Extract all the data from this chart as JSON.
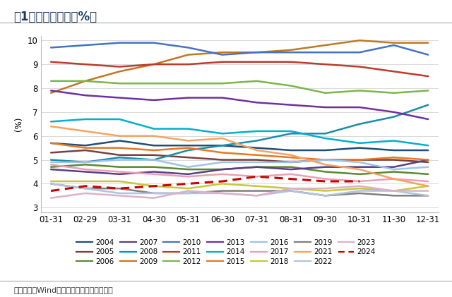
{
  "title": "图1：美国失业率（%）",
  "ylabel": "(%)",
  "source": "数据来源：Wind，广发证券发展研究中心。",
  "x_labels": [
    "01-31",
    "02-29",
    "03-31",
    "04-30",
    "05-31",
    "06-30",
    "07-31",
    "08-31",
    "09-30",
    "10-31",
    "11-30",
    "12-31"
  ],
  "ylim": [
    2.8,
    10.2
  ],
  "yticks": [
    3,
    4,
    5,
    6,
    7,
    8,
    9,
    10
  ],
  "series": {
    "2004": {
      "color": "#1F4E79",
      "values": [
        5.7,
        5.6,
        5.8,
        5.6,
        5.6,
        5.6,
        5.5,
        5.4,
        5.4,
        5.5,
        5.4,
        5.4
      ],
      "lw": 1.8,
      "ls": "-"
    },
    "2005": {
      "color": "#7B3F3F",
      "values": [
        5.3,
        5.4,
        5.2,
        5.2,
        5.1,
        5.0,
        5.0,
        4.9,
        5.0,
        5.0,
        5.0,
        4.9
      ],
      "lw": 1.8,
      "ls": "-"
    },
    "2006": {
      "color": "#5A8A2E",
      "values": [
        4.7,
        4.8,
        4.7,
        4.7,
        4.6,
        4.6,
        4.7,
        4.7,
        4.5,
        4.4,
        4.5,
        4.4
      ],
      "lw": 1.8,
      "ls": "-"
    },
    "2007": {
      "color": "#5B3D8A",
      "values": [
        4.6,
        4.5,
        4.4,
        4.5,
        4.4,
        4.6,
        4.7,
        4.6,
        4.7,
        4.7,
        4.7,
        5.0
      ],
      "lw": 1.8,
      "ls": "-"
    },
    "2008": {
      "color": "#1B8CA6",
      "values": [
        5.0,
        4.9,
        5.1,
        5.0,
        5.4,
        5.6,
        5.8,
        6.1,
        6.1,
        6.5,
        6.8,
        7.3
      ],
      "lw": 1.8,
      "ls": "-"
    },
    "2009": {
      "color": "#C07820",
      "values": [
        7.8,
        8.3,
        8.7,
        9.0,
        9.4,
        9.5,
        9.5,
        9.6,
        9.8,
        10.0,
        9.9,
        9.9
      ],
      "lw": 1.8,
      "ls": "-"
    },
    "2010": {
      "color": "#4472C4",
      "values": [
        9.7,
        9.8,
        9.9,
        9.9,
        9.7,
        9.4,
        9.5,
        9.5,
        9.5,
        9.5,
        9.8,
        9.4
      ],
      "lw": 1.8,
      "ls": "-"
    },
    "2011": {
      "color": "#C0392B",
      "values": [
        9.1,
        9.0,
        8.9,
        9.0,
        9.0,
        9.1,
        9.1,
        9.1,
        9.0,
        8.9,
        8.7,
        8.5
      ],
      "lw": 1.8,
      "ls": "-"
    },
    "2012": {
      "color": "#7AB648",
      "values": [
        8.3,
        8.3,
        8.2,
        8.2,
        8.2,
        8.2,
        8.3,
        8.1,
        7.8,
        7.9,
        7.8,
        7.9
      ],
      "lw": 1.8,
      "ls": "-"
    },
    "2013": {
      "color": "#7030A0",
      "values": [
        7.9,
        7.7,
        7.6,
        7.5,
        7.6,
        7.6,
        7.4,
        7.3,
        7.2,
        7.2,
        7.0,
        6.7
      ],
      "lw": 1.8,
      "ls": "-"
    },
    "2014": {
      "color": "#00B0D0",
      "values": [
        6.6,
        6.7,
        6.7,
        6.3,
        6.3,
        6.1,
        6.2,
        6.2,
        5.9,
        5.7,
        5.8,
        5.6
      ],
      "lw": 1.8,
      "ls": "-"
    },
    "2015": {
      "color": "#E87722",
      "values": [
        5.7,
        5.5,
        5.5,
        5.4,
        5.5,
        5.3,
        5.2,
        5.1,
        5.0,
        5.0,
        5.1,
        5.0
      ],
      "lw": 1.8,
      "ls": "-"
    },
    "2016": {
      "color": "#9DC3E6",
      "values": [
        4.9,
        4.9,
        5.0,
        5.0,
        4.7,
        4.9,
        4.9,
        4.9,
        5.0,
        4.9,
        4.6,
        4.7
      ],
      "lw": 1.8,
      "ls": "-"
    },
    "2017": {
      "color": "#E8A0B4",
      "values": [
        4.8,
        4.6,
        4.5,
        4.4,
        4.3,
        4.4,
        4.3,
        4.4,
        4.2,
        4.1,
        4.2,
        4.1
      ],
      "lw": 1.8,
      "ls": "-"
    },
    "2018": {
      "color": "#C5C837",
      "values": [
        4.1,
        4.1,
        4.1,
        3.9,
        3.8,
        4.0,
        3.9,
        3.8,
        3.7,
        3.8,
        3.7,
        3.9
      ],
      "lw": 1.8,
      "ls": "-"
    },
    "2019": {
      "color": "#7F7F7F",
      "values": [
        4.0,
        3.8,
        3.8,
        3.6,
        3.6,
        3.7,
        3.7,
        3.7,
        3.5,
        3.6,
        3.5,
        3.5
      ],
      "lw": 1.8,
      "ls": "-"
    },
    "2021": {
      "color": "#F4A460",
      "values": [
        6.4,
        6.2,
        6.0,
        6.0,
        5.8,
        5.9,
        5.4,
        5.2,
        4.8,
        4.6,
        4.2,
        3.9
      ],
      "lw": 1.8,
      "ls": "-"
    },
    "2022": {
      "color": "#B0C4DE",
      "values": [
        4.0,
        3.8,
        3.6,
        3.6,
        3.6,
        3.6,
        3.5,
        3.7,
        3.5,
        3.7,
        3.7,
        3.5
      ],
      "lw": 1.8,
      "ls": "-"
    },
    "2023": {
      "color": "#DEB0C8",
      "values": [
        3.4,
        3.6,
        3.5,
        3.4,
        3.7,
        3.6,
        3.5,
        3.8,
        3.8,
        3.9,
        3.7,
        3.7
      ],
      "lw": 1.8,
      "ls": "-"
    },
    "2024": {
      "color": "#CC0000",
      "values": [
        3.7,
        3.9,
        3.8,
        3.9,
        4.0,
        4.1,
        4.3,
        4.2,
        4.1,
        4.1,
        null,
        null
      ],
      "lw": 2.2,
      "ls": "--"
    }
  },
  "legend_order": [
    "2004",
    "2005",
    "2006",
    "2007",
    "2008",
    "2009",
    "2010",
    "2011",
    "2012",
    "2013",
    "2014",
    "2015",
    "2016",
    "2017",
    "2018",
    "2019",
    "2021",
    "2022",
    "2023",
    "2024"
  ],
  "bg_color": "#FFFFFF",
  "grid_color": "#CCCCCC",
  "title_fontsize": 12,
  "axis_fontsize": 8.5,
  "legend_fontsize": 7.5
}
